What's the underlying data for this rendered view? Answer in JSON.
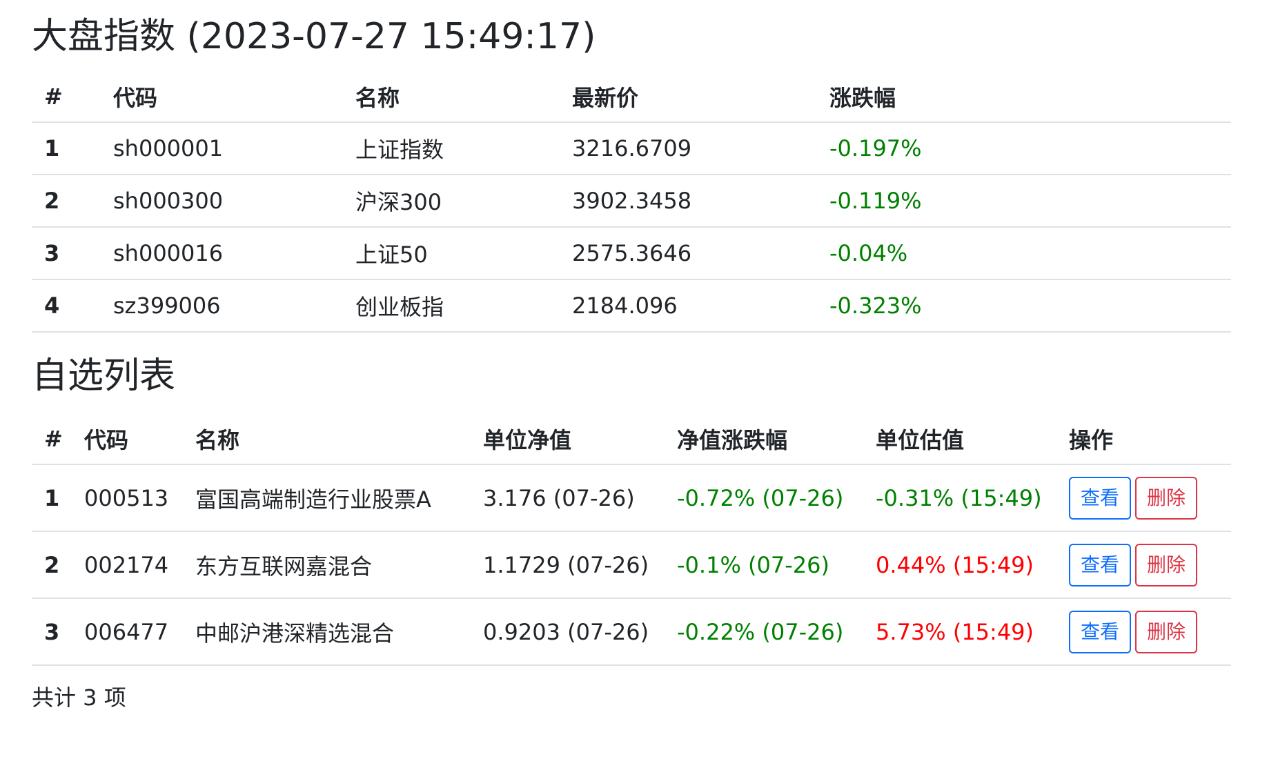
{
  "index_section": {
    "title": "大盘指数 (2023-07-27 15:49:17)",
    "headers": [
      "#",
      "代码",
      "名称",
      "最新价",
      "涨跌幅"
    ],
    "rows": [
      {
        "num": "1",
        "code": "sh000001",
        "name": "上证指数",
        "price": "3216.6709",
        "change": "-0.197%"
      },
      {
        "num": "2",
        "code": "sh000300",
        "name": "沪深300",
        "price": "3902.3458",
        "change": "-0.119%"
      },
      {
        "num": "3",
        "code": "sh000016",
        "name": "上证50",
        "price": "2575.3646",
        "change": "-0.04%"
      },
      {
        "num": "4",
        "code": "sz399006",
        "name": "创业板指",
        "price": "2184.096",
        "change": "-0.323%"
      }
    ]
  },
  "watch_section": {
    "title": "自选列表",
    "headers": [
      "#",
      "代码",
      "名称",
      "单位净值",
      "净值涨跌幅",
      "单位估值",
      "操作"
    ],
    "view_label": "查看",
    "delete_label": "删除",
    "rows": [
      {
        "num": "1",
        "code": "000513",
        "name": "富国高端制造行业股票A",
        "nav": "3.176 (07-26)",
        "nav_change": "-0.72% (07-26)",
        "estimate": "-0.31% (15:49)"
      },
      {
        "num": "2",
        "code": "002174",
        "name": "东方互联网嘉混合",
        "nav": "1.1729 (07-26)",
        "nav_change": "-0.1% (07-26)",
        "estimate": "0.44% (15:49)"
      },
      {
        "num": "3",
        "code": "006477",
        "name": "中邮沪港深精选混合",
        "nav": "0.9203 (07-26)",
        "nav_change": "-0.22% (07-26)",
        "estimate": "5.73% (15:49)"
      }
    ],
    "total_text": "共计 3 项"
  },
  "colors": {
    "down": "#008000",
    "up": "#ff0000",
    "view_button": "#0d6efd",
    "delete_button": "#dc3545"
  }
}
